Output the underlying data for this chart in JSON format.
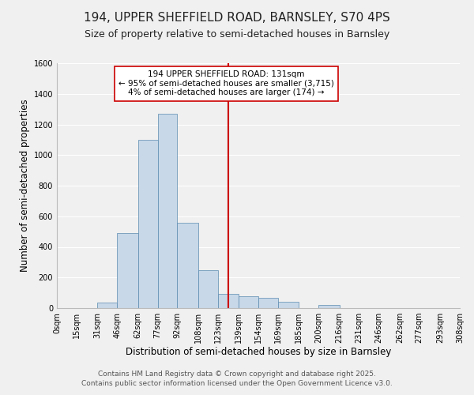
{
  "title1": "194, UPPER SHEFFIELD ROAD, BARNSLEY, S70 4PS",
  "title2": "Size of property relative to semi-detached houses in Barnsley",
  "xlabel": "Distribution of semi-detached houses by size in Barnsley",
  "ylabel": "Number of semi-detached properties",
  "bar_edges": [
    0,
    15,
    31,
    46,
    62,
    77,
    92,
    108,
    123,
    139,
    154,
    169,
    185,
    200,
    216,
    231,
    246,
    262,
    277,
    293,
    308
  ],
  "bar_heights": [
    0,
    0,
    35,
    490,
    1100,
    1270,
    555,
    250,
    95,
    80,
    65,
    40,
    0,
    20,
    0,
    0,
    0,
    0,
    0,
    0
  ],
  "bar_color": "#c8d8e8",
  "bar_edge_color": "#5a8ab0",
  "vline_x": 131,
  "vline_color": "#cc0000",
  "annotation_line1": "194 UPPER SHEFFIELD ROAD: 131sqm",
  "annotation_line2": "← 95% of semi-detached houses are smaller (3,715)",
  "annotation_line3": "4% of semi-detached houses are larger (174) →",
  "ylim": [
    0,
    1600
  ],
  "yticks": [
    0,
    200,
    400,
    600,
    800,
    1000,
    1200,
    1400,
    1600
  ],
  "tick_labels": [
    "0sqm",
    "15sqm",
    "31sqm",
    "46sqm",
    "62sqm",
    "77sqm",
    "92sqm",
    "108sqm",
    "123sqm",
    "139sqm",
    "154sqm",
    "169sqm",
    "185sqm",
    "200sqm",
    "216sqm",
    "231sqm",
    "246sqm",
    "262sqm",
    "277sqm",
    "293sqm",
    "308sqm"
  ],
  "footer1": "Contains HM Land Registry data © Crown copyright and database right 2025.",
  "footer2": "Contains public sector information licensed under the Open Government Licence v3.0.",
  "bg_color": "#f0f0f0",
  "grid_color": "#ffffff",
  "title_fontsize": 11,
  "subtitle_fontsize": 9,
  "axis_label_fontsize": 8.5,
  "tick_fontsize": 7,
  "footer_fontsize": 6.5,
  "annot_fontsize": 7.5
}
